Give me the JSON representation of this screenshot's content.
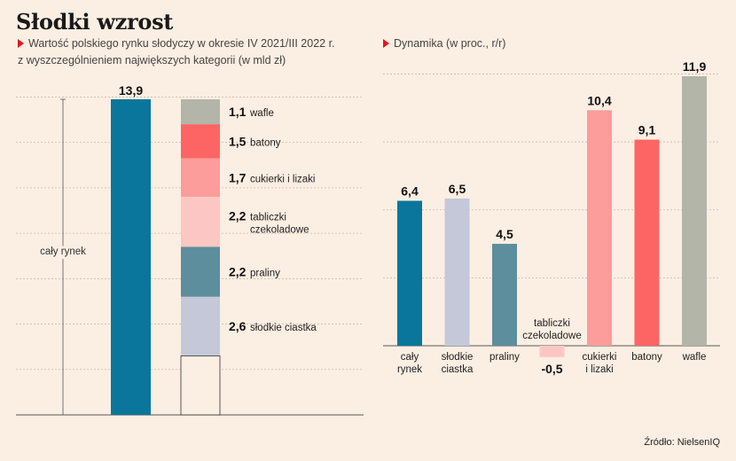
{
  "title": "Słodki wzrost",
  "left_subtitle_line1": "Wartość polskiego rynku słodyczy w okresie IV 2021/III 2022 r.",
  "left_subtitle_line2": "z wyszczególnieniem największych kategorii (w mld zł)",
  "right_subtitle": "Dynamika (w proc., r/r)",
  "source": "Źródło: NielsenIQ",
  "colors": {
    "background": "#fbeee2",
    "grid": "#ceb9ad",
    "teal_dark": "#0a769b",
    "lavender": "#c4c8d9",
    "teal_mid": "#5d8e9e",
    "pink_light": "#fcc7c3",
    "pink": "#fc9c9b",
    "red": "#fc6563",
    "grey": "#b3b5a9"
  },
  "chart_data": [
    {
      "type": "bar",
      "title": "",
      "subtitle": "Wartość polskiego rynku słodyczy w okresie IV 2021/III 2022 r. z wyszczególnieniem największych kategorii (w mld zł)",
      "unit": "mld zł",
      "ylim": [
        0,
        14
      ],
      "grid": true,
      "total": {
        "label": "cały rynek",
        "value": 13.9,
        "value_label": "13,9",
        "color": "#0a769b"
      },
      "stack_order": "top-to-bottom",
      "stack": [
        {
          "label_line1": "wafle",
          "label_line2": "",
          "value": 1.1,
          "value_label": "1,1",
          "color": "#b3b5a9"
        },
        {
          "label_line1": "batony",
          "label_line2": "",
          "value": 1.5,
          "value_label": "1,5",
          "color": "#fc6563"
        },
        {
          "label_line1": "cukierki i lizaki",
          "label_line2": "",
          "value": 1.7,
          "value_label": "1,7",
          "color": "#fc9c9b"
        },
        {
          "label_line1": "tabliczki",
          "label_line2": "czekoladowe",
          "value": 2.2,
          "value_label": "2,2",
          "color": "#fcc7c3"
        },
        {
          "label_line1": "praliny",
          "label_line2": "",
          "value": 2.2,
          "value_label": "2,2",
          "color": "#5d8e9e"
        },
        {
          "label_line1": "słodkie ciastka",
          "label_line2": "",
          "value": 2.6,
          "value_label": "2,6",
          "color": "#c4c8d9"
        },
        {
          "label_line1": "",
          "label_line2": "",
          "value": 2.6,
          "value_label": "",
          "color": "#fbeee2"
        }
      ]
    },
    {
      "type": "bar",
      "title": "",
      "subtitle": "Dynamika (w proc., r/r)",
      "unit": "%",
      "ylim": [
        -2,
        12
      ],
      "grid": true,
      "categories": [
        {
          "line1": "cały",
          "line2": "rynek",
          "value": 6.4,
          "value_label": "6,4",
          "color": "#0a769b"
        },
        {
          "line1": "słodkie",
          "line2": "ciastka",
          "value": 6.5,
          "value_label": "6,5",
          "color": "#c4c8d9"
        },
        {
          "line1": "praliny",
          "line2": "",
          "value": 4.5,
          "value_label": "4,5",
          "color": "#5d8e9e"
        },
        {
          "line1": "tabliczki",
          "line2": "czekoladowe",
          "value": -0.5,
          "value_label": "-0,5",
          "color": "#fcc7c3"
        },
        {
          "line1": "cukierki",
          "line2": "i lizaki",
          "value": 10.4,
          "value_label": "10,4",
          "color": "#fc9c9b"
        },
        {
          "line1": "batony",
          "line2": "",
          "value": 9.1,
          "value_label": "9,1",
          "color": "#fc6563"
        },
        {
          "line1": "wafle",
          "line2": "",
          "value": 11.9,
          "value_label": "11,9",
          "color": "#b3b5a9"
        }
      ]
    }
  ]
}
